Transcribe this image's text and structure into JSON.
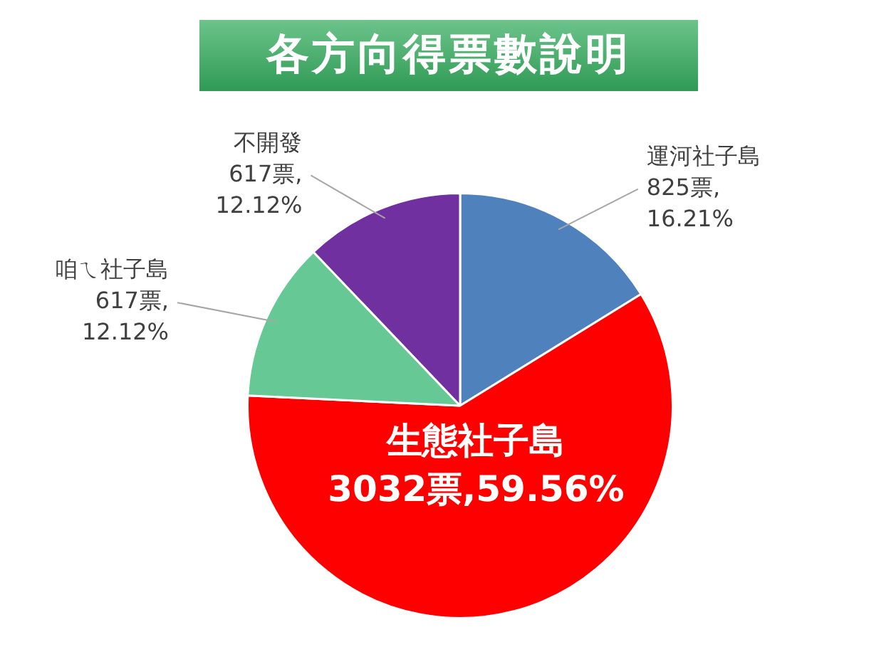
{
  "chart_data": {
    "type": "pie",
    "title": "各方向得票數說明",
    "categories": [
      "運河社子島",
      "生態社子島",
      "咱ㄟ社子島",
      "不開發"
    ],
    "values": [
      825,
      3032,
      617,
      617
    ],
    "colors": [
      "#4f81bd",
      "#ff0000",
      "#66c995",
      "#7030a0"
    ],
    "value_labels": [
      "825票,\n16.21%",
      "3032票,59.56%",
      "617票,\n12.12%",
      "617票,\n12.12%"
    ],
    "legend": false
  }
}
